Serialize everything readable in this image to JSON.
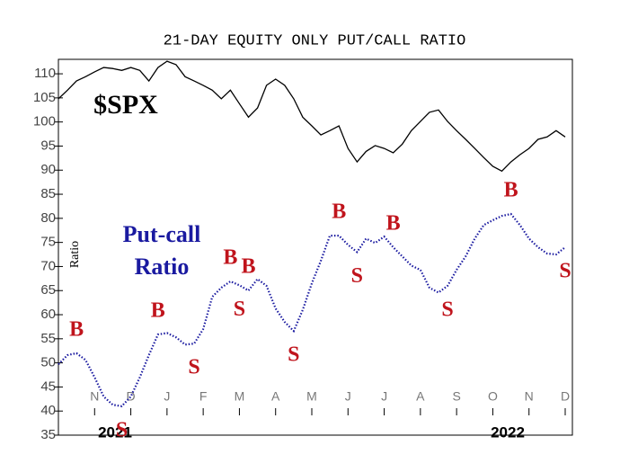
{
  "chart_data": {
    "type": "line",
    "title": "21-DAY EQUITY ONLY PUT/CALL RATIO",
    "y_label": "Ratio",
    "categories": [
      null,
      null,
      null,
      null,
      "N",
      null,
      null,
      null,
      "D",
      null,
      null,
      null,
      "J",
      null,
      null,
      null,
      "F",
      null,
      null,
      null,
      "M",
      null,
      null,
      null,
      "A",
      null,
      null,
      null,
      "M",
      null,
      null,
      null,
      "J",
      null,
      null,
      null,
      "J",
      null,
      null,
      null,
      "A",
      null,
      null,
      null,
      "S",
      null,
      null,
      null,
      "O",
      null,
      null,
      null,
      "N",
      null,
      null,
      null,
      "D"
    ],
    "years": [
      "2021",
      "2022"
    ],
    "series": [
      {
        "name": "$SPX",
        "color": "#000000",
        "dotted": false,
        "values": [
          104.8,
          106.6,
          108.5,
          109.4,
          110.4,
          111.3,
          111.1,
          110.7,
          111.3,
          110.7,
          108.5,
          111.3,
          112.6,
          111.9,
          109.4,
          108.5,
          107.6,
          106.6,
          104.8,
          106.6,
          103.8,
          101,
          102.9,
          107.6,
          108.9,
          107.6,
          104.8,
          101,
          99.2,
          97.3,
          98.2,
          99.2,
          94.5,
          91.7,
          93.9,
          95.1,
          94.5,
          93.6,
          95.4,
          98.2,
          100.1,
          102,
          102.5,
          100.1,
          98.2,
          96.4,
          94.5,
          92.6,
          90.8,
          89.8,
          91.7,
          93.2,
          94.5,
          96.4,
          96.9,
          98.2,
          96.9
        ]
      },
      {
        "name": "Put-call Ratio",
        "color": "#1a1aa0",
        "dotted": true,
        "values": [
          49.7,
          51.6,
          52,
          50.6,
          47,
          43,
          41.3,
          41,
          43,
          47,
          51.6,
          55.9,
          56.2,
          55.3,
          53.8,
          54,
          57,
          63.7,
          65.6,
          66.9,
          66.1,
          65,
          67.4,
          66,
          61.3,
          58.5,
          56.6,
          61,
          66.5,
          71.2,
          76.4,
          76.4,
          74.5,
          73,
          75.8,
          74.9,
          76.2,
          74,
          72.1,
          70.2,
          69.3,
          65.6,
          64.6,
          66,
          69.3,
          72.1,
          75.8,
          78.6,
          79.6,
          80.5,
          80.9,
          78.6,
          75.8,
          74,
          72.7,
          72.5,
          74
        ]
      }
    ],
    "signals": {
      "color": "#c0141c",
      "series": 1,
      "items": [
        {
          "label": "B",
          "index": 2
        },
        {
          "label": "S",
          "index": 7
        },
        {
          "label": "B",
          "index": 11
        },
        {
          "label": "S",
          "index": 15
        },
        {
          "label": "B",
          "index": 19
        },
        {
          "label": "S",
          "index": 20
        },
        {
          "label": "B",
          "index": 21
        },
        {
          "label": "S",
          "index": 26
        },
        {
          "label": "B",
          "index": 31
        },
        {
          "label": "S",
          "index": 33
        },
        {
          "label": "B",
          "index": 37
        },
        {
          "label": "S",
          "index": 43
        },
        {
          "label": "B",
          "index": 50
        },
        {
          "label": "S",
          "index": 56
        }
      ]
    },
    "ylim": [
      35,
      113
    ],
    "yticks": [
      35,
      40,
      45,
      50,
      55,
      60,
      65,
      70,
      75,
      80,
      85,
      90,
      95,
      100,
      105,
      110
    ],
    "grid": false
  }
}
